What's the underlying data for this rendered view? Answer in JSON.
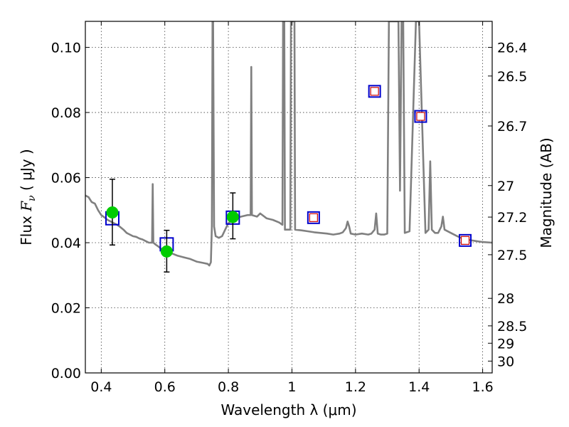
{
  "chart_data": {
    "type": "scatter",
    "xlabel": "Wavelength  λ (μm)",
    "ylabel_text": "Flux ",
    "ylabel_symbol": "F",
    "ylabel_subscript": "ν",
    "ylabel_unit": " ( μJy )",
    "y2label": "Magnitude (AB)",
    "xlim": [
      0.35,
      1.63
    ],
    "ylim": [
      0.0,
      0.108
    ],
    "grid": true,
    "x_ticks": [
      0.4,
      0.6,
      0.8,
      1.0,
      1.2,
      1.4,
      1.6
    ],
    "x_tick_labels": [
      "0.4",
      "0.6",
      "0.8",
      "1",
      "1.2",
      "1.4",
      "1.6"
    ],
    "y_ticks": [
      0.0,
      0.02,
      0.04,
      0.06,
      0.08,
      0.1
    ],
    "y_tick_labels": [
      "0.00",
      "0.02",
      "0.04",
      "0.06",
      "0.08",
      "0.10"
    ],
    "y2_ticks": [
      {
        "mag": 26.4,
        "label": "26.4"
      },
      {
        "mag": 26.5,
        "label": "26.5"
      },
      {
        "mag": 26.7,
        "label": "26.7"
      },
      {
        "mag": 27.0,
        "label": "27"
      },
      {
        "mag": 27.2,
        "label": "27.2"
      },
      {
        "mag": 27.5,
        "label": "27.5"
      },
      {
        "mag": 28.0,
        "label": "28"
      },
      {
        "mag": 28.5,
        "label": "28.5"
      },
      {
        "mag": 29.0,
        "label": "29"
      },
      {
        "mag": 30.0,
        "label": "30"
      }
    ],
    "colors": {
      "model": "#808080",
      "observed": "#00cc00",
      "model_box": "#0000cc",
      "model_box_inner": "#cc0000",
      "errorbar": "#000000"
    },
    "series": [
      {
        "kind": "model_spectrum",
        "points": [
          [
            0.35,
            0.0545
          ],
          [
            0.36,
            0.054
          ],
          [
            0.37,
            0.0525
          ],
          [
            0.38,
            0.052
          ],
          [
            0.39,
            0.05
          ],
          [
            0.4,
            0.0485
          ],
          [
            0.41,
            0.0478
          ],
          [
            0.42,
            0.047
          ],
          [
            0.43,
            0.0465
          ],
          [
            0.44,
            0.046
          ],
          [
            0.45,
            0.0455
          ],
          [
            0.46,
            0.0448
          ],
          [
            0.47,
            0.044
          ],
          [
            0.48,
            0.043
          ],
          [
            0.49,
            0.0425
          ],
          [
            0.5,
            0.042
          ],
          [
            0.51,
            0.0418
          ],
          [
            0.52,
            0.0413
          ],
          [
            0.53,
            0.041
          ],
          [
            0.54,
            0.0405
          ],
          [
            0.55,
            0.04
          ],
          [
            0.555,
            0.04
          ],
          [
            0.56,
            0.04
          ],
          [
            0.562,
            0.058
          ],
          [
            0.564,
            0.04
          ],
          [
            0.57,
            0.0395
          ],
          [
            0.58,
            0.0388
          ],
          [
            0.59,
            0.038
          ],
          [
            0.6,
            0.0375
          ],
          [
            0.62,
            0.0368
          ],
          [
            0.64,
            0.036
          ],
          [
            0.66,
            0.0355
          ],
          [
            0.68,
            0.035
          ],
          [
            0.7,
            0.0342
          ],
          [
            0.72,
            0.0338
          ],
          [
            0.735,
            0.0335
          ],
          [
            0.74,
            0.033
          ],
          [
            0.745,
            0.034
          ],
          [
            0.748,
            0.045
          ],
          [
            0.75,
            0.108
          ],
          [
            0.752,
            0.108
          ],
          [
            0.755,
            0.045
          ],
          [
            0.76,
            0.042
          ],
          [
            0.77,
            0.0415
          ],
          [
            0.78,
            0.042
          ],
          [
            0.79,
            0.044
          ],
          [
            0.8,
            0.046
          ],
          [
            0.82,
            0.0475
          ],
          [
            0.84,
            0.048
          ],
          [
            0.86,
            0.0485
          ],
          [
            0.87,
            0.0485
          ],
          [
            0.872,
            0.094
          ],
          [
            0.874,
            0.0485
          ],
          [
            0.89,
            0.048
          ],
          [
            0.9,
            0.049
          ],
          [
            0.92,
            0.0475
          ],
          [
            0.94,
            0.047
          ],
          [
            0.96,
            0.0462
          ],
          [
            0.97,
            0.0455
          ],
          [
            0.972,
            0.108
          ],
          [
            0.976,
            0.108
          ],
          [
            0.978,
            0.044
          ],
          [
            0.99,
            0.044
          ],
          [
            0.995,
            0.044
          ],
          [
            0.997,
            0.108
          ],
          [
            1.008,
            0.108
          ],
          [
            1.01,
            0.044
          ],
          [
            1.03,
            0.0438
          ],
          [
            1.05,
            0.0435
          ],
          [
            1.07,
            0.0432
          ],
          [
            1.09,
            0.043
          ],
          [
            1.11,
            0.0428
          ],
          [
            1.13,
            0.0425
          ],
          [
            1.15,
            0.0428
          ],
          [
            1.16,
            0.0432
          ],
          [
            1.17,
            0.0445
          ],
          [
            1.175,
            0.0465
          ],
          [
            1.18,
            0.045
          ],
          [
            1.185,
            0.0428
          ],
          [
            1.2,
            0.0425
          ],
          [
            1.22,
            0.0428
          ],
          [
            1.24,
            0.0425
          ],
          [
            1.25,
            0.0428
          ],
          [
            1.26,
            0.044
          ],
          [
            1.265,
            0.049
          ],
          [
            1.27,
            0.0428
          ],
          [
            1.28,
            0.0425
          ],
          [
            1.29,
            0.0425
          ],
          [
            1.3,
            0.0428
          ],
          [
            1.305,
            0.108
          ],
          [
            1.335,
            0.108
          ],
          [
            1.34,
            0.056
          ],
          [
            1.345,
            0.108
          ],
          [
            1.35,
            0.108
          ],
          [
            1.355,
            0.043
          ],
          [
            1.37,
            0.0435
          ],
          [
            1.39,
            0.108
          ],
          [
            1.4,
            0.108
          ],
          [
            1.42,
            0.043
          ],
          [
            1.43,
            0.044
          ],
          [
            1.435,
            0.065
          ],
          [
            1.44,
            0.044
          ],
          [
            1.45,
            0.043
          ],
          [
            1.46,
            0.043
          ],
          [
            1.47,
            0.045
          ],
          [
            1.475,
            0.048
          ],
          [
            1.48,
            0.044
          ],
          [
            1.5,
            0.043
          ],
          [
            1.52,
            0.042
          ],
          [
            1.54,
            0.0412
          ],
          [
            1.56,
            0.0408
          ],
          [
            1.58,
            0.0405
          ],
          [
            1.6,
            0.0402
          ],
          [
            1.63,
            0.04
          ]
        ]
      },
      {
        "kind": "model_box",
        "name_hidden": "photometry",
        "points": [
          {
            "x": 0.435,
            "y": 0.0475
          },
          {
            "x": 0.606,
            "y": 0.0395
          },
          {
            "x": 0.814,
            "y": 0.0477
          },
          {
            "x": 1.068,
            "y": 0.0477,
            "inner": true
          },
          {
            "x": 1.26,
            "y": 0.0865,
            "inner": true
          },
          {
            "x": 1.405,
            "y": 0.0788,
            "inner": true
          },
          {
            "x": 1.545,
            "y": 0.0407,
            "inner": true
          }
        ]
      },
      {
        "kind": "observed",
        "points": [
          {
            "x": 0.435,
            "y": 0.0493,
            "yerr_low": 0.0393,
            "yerr_high": 0.0595
          },
          {
            "x": 0.606,
            "y": 0.0373,
            "yerr_low": 0.031,
            "yerr_high": 0.0438
          },
          {
            "x": 0.814,
            "y": 0.0479,
            "yerr_low": 0.0412,
            "yerr_high": 0.0553
          }
        ]
      }
    ]
  }
}
